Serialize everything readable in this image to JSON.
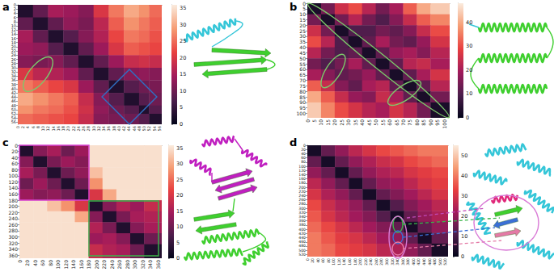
{
  "chart_data": [
    {
      "type": "heatmap",
      "title": "a",
      "edges": [
        0,
        6,
        12,
        18,
        24,
        30,
        36,
        42,
        48,
        52,
        57
      ],
      "xlim": [
        0,
        57
      ],
      "ylim": [
        0,
        57
      ],
      "xticks": [
        0,
        2,
        4,
        6,
        8,
        10,
        12,
        14,
        16,
        18,
        20,
        22,
        24,
        26,
        28,
        30,
        32,
        34,
        36,
        38,
        40,
        42,
        44,
        46,
        48,
        50,
        52,
        54,
        56
      ],
      "yticks": [
        0,
        2,
        4,
        6,
        8,
        10,
        12,
        14,
        16,
        18,
        20,
        22,
        24,
        26,
        28,
        30,
        32,
        34,
        36,
        38,
        40,
        42,
        44,
        46,
        48,
        50,
        52,
        54,
        56
      ],
      "matrix": [
        [
          3,
          9,
          15,
          14,
          12,
          20,
          26,
          30,
          28,
          25
        ],
        [
          9,
          3,
          9,
          13,
          11,
          17,
          24,
          28,
          26,
          24
        ],
        [
          15,
          9,
          3,
          8,
          12,
          16,
          22,
          26,
          25,
          23
        ],
        [
          14,
          13,
          8,
          3,
          9,
          14,
          20,
          24,
          23,
          22
        ],
        [
          12,
          11,
          12,
          9,
          3,
          9,
          14,
          18,
          19,
          18
        ],
        [
          20,
          17,
          16,
          14,
          9,
          3,
          9,
          12,
          13,
          12
        ],
        [
          26,
          24,
          22,
          20,
          14,
          9,
          3,
          8,
          10,
          11
        ],
        [
          30,
          28,
          26,
          24,
          18,
          12,
          8,
          3,
          8,
          10
        ],
        [
          28,
          26,
          25,
          23,
          19,
          13,
          10,
          8,
          3,
          8
        ],
        [
          25,
          24,
          23,
          22,
          18,
          12,
          11,
          10,
          8,
          3
        ]
      ],
      "colorbar": {
        "range": [
          0,
          36
        ],
        "ticks": [
          0,
          5,
          10,
          15,
          20,
          25,
          30,
          35
        ]
      }
    },
    {
      "type": "heatmap",
      "title": "b",
      "edges": [
        0,
        10,
        20,
        30,
        40,
        50,
        60,
        70,
        80,
        90,
        104
      ],
      "xlim": [
        0,
        104
      ],
      "ylim": [
        0,
        104
      ],
      "xticks": [
        0,
        5,
        10,
        15,
        20,
        25,
        30,
        35,
        40,
        45,
        50,
        55,
        60,
        65,
        70,
        75,
        80,
        85,
        90,
        95,
        100
      ],
      "yticks": [
        0,
        5,
        10,
        15,
        20,
        25,
        30,
        35,
        40,
        45,
        50,
        55,
        60,
        65,
        70,
        75,
        80,
        85,
        90,
        95,
        100
      ],
      "matrix": [
        [
          3,
          14,
          25,
          30,
          22,
          14,
          20,
          32,
          40,
          44
        ],
        [
          14,
          3,
          14,
          22,
          14,
          10,
          16,
          24,
          32,
          36
        ],
        [
          25,
          14,
          3,
          10,
          10,
          14,
          12,
          16,
          24,
          30
        ],
        [
          30,
          22,
          10,
          3,
          12,
          20,
          14,
          12,
          18,
          26
        ],
        [
          22,
          14,
          10,
          12,
          3,
          12,
          18,
          20,
          16,
          22
        ],
        [
          14,
          10,
          14,
          20,
          12,
          3,
          12,
          22,
          24,
          20
        ],
        [
          20,
          16,
          12,
          14,
          18,
          12,
          3,
          12,
          20,
          26
        ],
        [
          32,
          24,
          16,
          12,
          20,
          22,
          12,
          3,
          12,
          22
        ],
        [
          40,
          32,
          24,
          18,
          16,
          24,
          20,
          12,
          3,
          14
        ],
        [
          44,
          36,
          30,
          26,
          22,
          20,
          26,
          22,
          14,
          3
        ]
      ],
      "colorbar": {
        "range": [
          0,
          48
        ],
        "ticks": [
          0,
          10,
          20,
          30,
          40
        ]
      }
    },
    {
      "type": "heatmap",
      "title": "c",
      "edges": [
        0,
        36,
        72,
        108,
        144,
        180,
        216,
        252,
        288,
        324,
        370
      ],
      "xlim": [
        0,
        370
      ],
      "ylim": [
        0,
        370
      ],
      "xticks": [
        0,
        20,
        40,
        60,
        80,
        100,
        120,
        140,
        160,
        180,
        200,
        220,
        240,
        260,
        280,
        300,
        320,
        340,
        360
      ],
      "yticks": [
        0,
        20,
        40,
        60,
        80,
        100,
        120,
        140,
        160,
        180,
        200,
        220,
        240,
        260,
        280,
        300,
        320,
        340,
        360
      ],
      "matrix": [
        [
          3,
          12,
          15,
          10,
          14,
          35,
          35,
          35,
          35,
          35
        ],
        [
          12,
          3,
          11,
          14,
          12,
          35,
          35,
          35,
          35,
          35
        ],
        [
          15,
          11,
          3,
          10,
          13,
          32,
          35,
          35,
          35,
          35
        ],
        [
          10,
          14,
          10,
          3,
          10,
          28,
          35,
          35,
          35,
          35
        ],
        [
          14,
          12,
          13,
          10,
          3,
          20,
          30,
          35,
          35,
          35
        ],
        [
          35,
          35,
          32,
          28,
          20,
          3,
          12,
          16,
          14,
          18
        ],
        [
          35,
          35,
          35,
          35,
          30,
          12,
          3,
          11,
          15,
          16
        ],
        [
          35,
          35,
          35,
          35,
          35,
          16,
          11,
          3,
          12,
          15
        ],
        [
          35,
          35,
          35,
          35,
          35,
          14,
          15,
          12,
          3,
          10
        ],
        [
          35,
          35,
          35,
          35,
          35,
          18,
          16,
          15,
          10,
          3
        ]
      ],
      "colorbar": {
        "range": [
          0,
          36
        ],
        "ticks": [
          0,
          5,
          10,
          15,
          20,
          25,
          30,
          35
        ]
      }
    },
    {
      "type": "heatmap",
      "title": "d",
      "edges": [
        0,
        52,
        104,
        156,
        208,
        260,
        312,
        364,
        416,
        468,
        530
      ],
      "xlim": [
        0,
        530
      ],
      "ylim": [
        0,
        530
      ],
      "xticks": [
        0,
        20,
        40,
        60,
        80,
        100,
        120,
        140,
        160,
        180,
        200,
        220,
        240,
        260,
        280,
        300,
        320,
        340,
        360,
        380,
        400,
        420,
        440,
        460,
        480,
        500,
        520
      ],
      "yticks": [
        0,
        20,
        40,
        60,
        80,
        100,
        120,
        140,
        160,
        180,
        200,
        220,
        240,
        260,
        280,
        300,
        320,
        340,
        360,
        380,
        400,
        420,
        440,
        460,
        480,
        500,
        520
      ],
      "matrix": [
        [
          3,
          14,
          20,
          26,
          30,
          34,
          36,
          38,
          40,
          40
        ],
        [
          14,
          3,
          14,
          20,
          24,
          28,
          30,
          34,
          36,
          38
        ],
        [
          20,
          14,
          3,
          14,
          20,
          24,
          26,
          30,
          32,
          34
        ],
        [
          26,
          20,
          14,
          3,
          14,
          20,
          22,
          26,
          30,
          32
        ],
        [
          30,
          24,
          20,
          14,
          3,
          14,
          18,
          22,
          26,
          30
        ],
        [
          34,
          28,
          24,
          20,
          14,
          3,
          12,
          18,
          22,
          26
        ],
        [
          36,
          30,
          26,
          22,
          18,
          12,
          3,
          14,
          20,
          24
        ],
        [
          38,
          34,
          30,
          26,
          22,
          18,
          14,
          3,
          14,
          20
        ],
        [
          40,
          36,
          32,
          30,
          26,
          22,
          20,
          14,
          3,
          14
        ],
        [
          40,
          38,
          34,
          32,
          30,
          26,
          24,
          20,
          14,
          3
        ]
      ],
      "colorbar": {
        "range": [
          0,
          55
        ],
        "ticks": [
          0,
          10,
          20,
          30,
          40,
          50
        ]
      }
    }
  ]
}
